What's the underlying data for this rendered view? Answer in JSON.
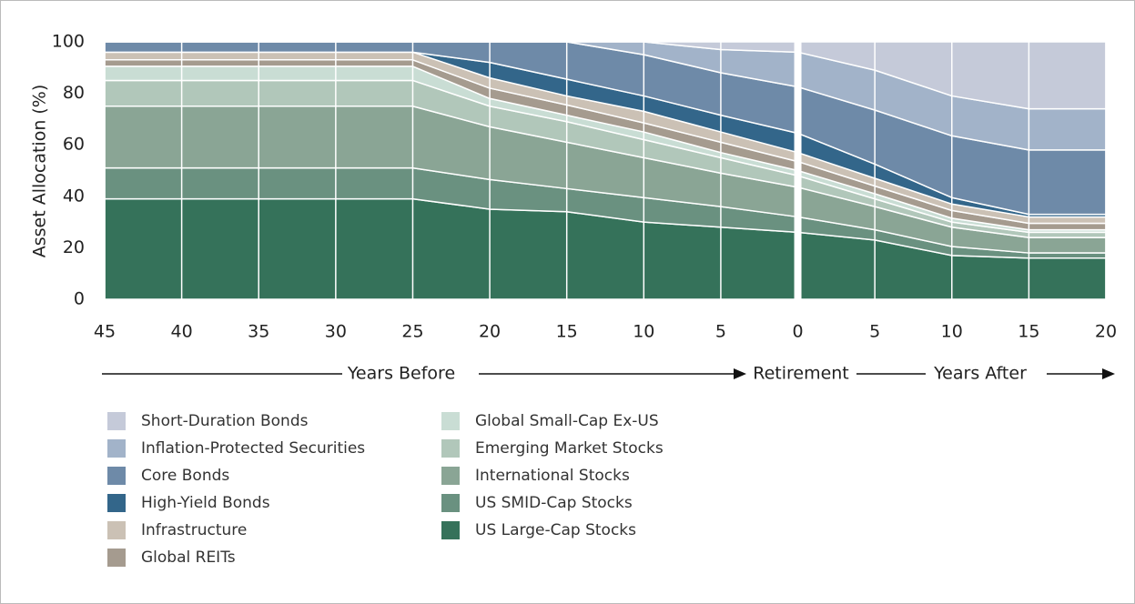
{
  "chart_data": {
    "type": "area",
    "stacked": true,
    "ylabel": "Asset Allocation (%)",
    "categories": [
      "45",
      "40",
      "35",
      "30",
      "25",
      "20",
      "15",
      "10",
      "5",
      "0",
      "5",
      "10",
      "15",
      "20"
    ],
    "ylim": [
      0,
      100
    ],
    "yticks": [
      0,
      20,
      40,
      60,
      80,
      100
    ],
    "annotations": [
      "Years Before",
      "Retirement",
      "Years After"
    ],
    "series": [
      {
        "name": "US Large-Cap Stocks",
        "color": "#35725a",
        "values": [
          39,
          39,
          39,
          39,
          39,
          35,
          34,
          30,
          28,
          26,
          23,
          17,
          16,
          16
        ]
      },
      {
        "name": "US SMID-Cap Stocks",
        "color": "#6a9180",
        "values": [
          12,
          12,
          12,
          12,
          12,
          11.5,
          9,
          9.5,
          8,
          6,
          4,
          3.5,
          2,
          2
        ]
      },
      {
        "name": "International Stocks",
        "color": "#8aa595",
        "values": [
          24,
          24,
          24,
          24,
          24,
          20.5,
          18,
          15.5,
          13,
          11.5,
          9,
          7.5,
          6,
          6
        ]
      },
      {
        "name": "Emerging Market Stocks",
        "color": "#b1c7ba",
        "values": [
          10,
          10,
          10,
          10,
          10,
          8,
          8,
          7,
          6,
          4.5,
          3,
          2,
          2,
          2
        ]
      },
      {
        "name": "Global Small-Cap Ex-US",
        "color": "#c9ddd4",
        "values": [
          5.5,
          5.5,
          5.5,
          5.5,
          5.5,
          3,
          2.5,
          3,
          2,
          2,
          2,
          1.5,
          1,
          1
        ]
      },
      {
        "name": "Global REITs",
        "color": "#a59b8f",
        "values": [
          2.5,
          2.5,
          2.5,
          2.5,
          2.5,
          4,
          4,
          3.5,
          4,
          3.5,
          3,
          3,
          2.5,
          2.5
        ]
      },
      {
        "name": "Infrastructure",
        "color": "#cbc1b5",
        "values": [
          3,
          3,
          3,
          3,
          3,
          4,
          3.5,
          4.5,
          4,
          3.5,
          3,
          2.5,
          2.5,
          2.5
        ]
      },
      {
        "name": "High-Yield Bonds",
        "color": "#33668a",
        "values": [
          0,
          0,
          0,
          0,
          0,
          6,
          6.5,
          6,
          6.5,
          7.5,
          5.5,
          2.5,
          1,
          1
        ]
      },
      {
        "name": "Core Bonds",
        "color": "#6e8aa8",
        "values": [
          4,
          4,
          4,
          4,
          4,
          8,
          14.5,
          16,
          16.5,
          18,
          21,
          24,
          25,
          25
        ]
      },
      {
        "name": "Inflation-Protected Securities",
        "color": "#a2b3c9",
        "values": [
          0,
          0,
          0,
          0,
          0,
          0,
          0,
          5,
          9,
          13.5,
          15.5,
          15.5,
          16,
          16
        ]
      },
      {
        "name": "Short-Duration Bonds",
        "color": "#c5cad9",
        "values": [
          0,
          0,
          0,
          0,
          0,
          0,
          0,
          0,
          3,
          4,
          11,
          21,
          26,
          26
        ]
      }
    ]
  }
}
